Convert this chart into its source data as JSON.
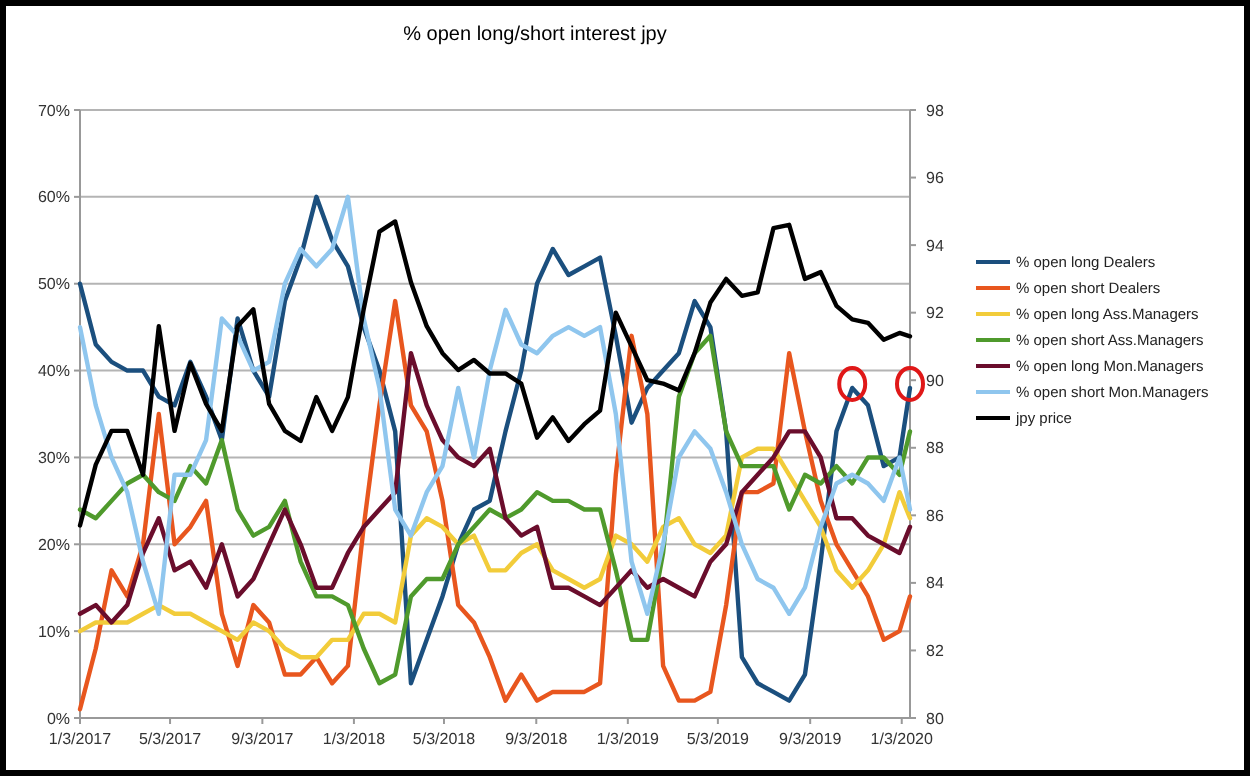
{
  "chart_data": {
    "type": "line",
    "title": "% open long/short interest jpy",
    "x": [
      "2017-01-03",
      "2017-01-24",
      "2017-02-14",
      "2017-03-07",
      "2017-03-28",
      "2017-04-18",
      "2017-05-09",
      "2017-05-30",
      "2017-06-20",
      "2017-07-11",
      "2017-08-01",
      "2017-08-22",
      "2017-09-12",
      "2017-10-03",
      "2017-10-24",
      "2017-11-14",
      "2017-12-05",
      "2017-12-26",
      "2018-01-16",
      "2018-02-06",
      "2018-02-27",
      "2018-03-20",
      "2018-04-10",
      "2018-05-01",
      "2018-05-22",
      "2018-06-12",
      "2018-07-03",
      "2018-07-24",
      "2018-08-14",
      "2018-09-04",
      "2018-09-25",
      "2018-10-16",
      "2018-11-06",
      "2018-11-27",
      "2018-12-18",
      "2019-01-08",
      "2019-01-29",
      "2019-02-19",
      "2019-03-12",
      "2019-04-02",
      "2019-04-23",
      "2019-05-14",
      "2019-06-04",
      "2019-06-25",
      "2019-07-16",
      "2019-08-06",
      "2019-08-27",
      "2019-09-17",
      "2019-10-08",
      "2019-10-29",
      "2019-11-19",
      "2019-12-10",
      "2019-12-31",
      "2020-01-14"
    ],
    "series": [
      {
        "name": "% open long Dealers",
        "color": "#1b4f7e",
        "values": [
          50,
          43,
          41,
          40,
          40,
          37,
          36,
          41,
          37,
          32,
          46,
          40,
          37,
          48,
          53,
          60,
          55,
          52,
          45,
          40,
          33,
          4,
          9,
          14,
          20,
          24,
          25,
          33,
          40,
          50,
          54,
          51,
          52,
          53,
          44,
          34,
          38,
          40,
          42,
          48,
          45,
          33,
          7,
          4,
          3,
          2,
          5,
          18,
          33,
          38,
          36,
          29,
          30,
          38
        ]
      },
      {
        "name": "% open short Dealers",
        "color": "#e8561e",
        "values": [
          1,
          8,
          17,
          14,
          20,
          35,
          20,
          22,
          25,
          12,
          6,
          13,
          11,
          5,
          5,
          7,
          4,
          6,
          22,
          36,
          48,
          36,
          33,
          25,
          13,
          11,
          7,
          2,
          5,
          2,
          3,
          3,
          3,
          4,
          28,
          44,
          35,
          6,
          2,
          2,
          3,
          13,
          26,
          26,
          27,
          42,
          33,
          25,
          20,
          17,
          14,
          9,
          10,
          14
        ]
      },
      {
        "name": "% open long Ass.Managers",
        "color": "#f2cc3a",
        "values": [
          10,
          11,
          11,
          11,
          12,
          13,
          12,
          12,
          11,
          10,
          9,
          11,
          10,
          8,
          7,
          7,
          9,
          9,
          12,
          12,
          11,
          21,
          23,
          22,
          20,
          21,
          17,
          17,
          19,
          20,
          17,
          16,
          15,
          16,
          21,
          20,
          18,
          22,
          23,
          20,
          19,
          21,
          30,
          31,
          31,
          28,
          25,
          22,
          17,
          15,
          17,
          20,
          26,
          23
        ]
      },
      {
        "name": "% open short Ass.Managers",
        "color": "#4f9a2c",
        "values": [
          24,
          23,
          25,
          27,
          28,
          26,
          25,
          29,
          27,
          32,
          24,
          21,
          22,
          25,
          18,
          14,
          14,
          13,
          8,
          4,
          5,
          14,
          16,
          16,
          20,
          22,
          24,
          23,
          24,
          26,
          25,
          25,
          24,
          24,
          17,
          9,
          9,
          19,
          37,
          42,
          44,
          33,
          29,
          29,
          29,
          24,
          28,
          27,
          29,
          27,
          30,
          30,
          28,
          33
        ]
      },
      {
        "name": "% open long Mon.Managers",
        "color": "#6a0d2c",
        "values": [
          12,
          13,
          11,
          13,
          19,
          23,
          17,
          18,
          15,
          20,
          14,
          16,
          20,
          24,
          20,
          15,
          15,
          19,
          22,
          24,
          26,
          42,
          36,
          32,
          30,
          29,
          31,
          23,
          21,
          22,
          15,
          15,
          14,
          13,
          15,
          17,
          15,
          16,
          15,
          14,
          18,
          20,
          26,
          28,
          30,
          33,
          33,
          30,
          23,
          23,
          21,
          20,
          19,
          22
        ]
      },
      {
        "name": "% open short Mon.Managers",
        "color": "#8fc6ee",
        "values": [
          45,
          36,
          30,
          26,
          18,
          12,
          28,
          28,
          32,
          46,
          44,
          40,
          41,
          50,
          54,
          52,
          54,
          60,
          46,
          38,
          24,
          21,
          26,
          29,
          38,
          30,
          40,
          47,
          43,
          42,
          44,
          45,
          44,
          45,
          35,
          18,
          12,
          20,
          30,
          33,
          31,
          26,
          20,
          16,
          15,
          12,
          15,
          22,
          27,
          28,
          27,
          25,
          30,
          24
        ]
      },
      {
        "name": "jpy price",
        "color": "#000000",
        "axis": "y2",
        "values": [
          85.7,
          87.5,
          88.5,
          88.5,
          87.2,
          91.6,
          88.5,
          90.5,
          89.3,
          88.5,
          91.6,
          92.1,
          89.3,
          88.5,
          88.2,
          89.5,
          88.5,
          89.5,
          92.1,
          94.4,
          94.7,
          92.9,
          91.6,
          90.8,
          90.3,
          90.6,
          90.2,
          90.2,
          89.9,
          88.3,
          88.9,
          88.2,
          88.7,
          89.1,
          92,
          91,
          90,
          89.9,
          89.7,
          90.8,
          92.3,
          93,
          92.5,
          92.6,
          94.5,
          94.6,
          93,
          93.2,
          92.2,
          91.8,
          91.7,
          91.2,
          91.4,
          91.3
        ]
      }
    ],
    "xlim": [
      "2017-01-03",
      "2020-01-14"
    ],
    "xticks": [
      {
        "value": "2017-01-03",
        "label": "1/3/2017"
      },
      {
        "value": "2017-05-03",
        "label": "5/3/2017"
      },
      {
        "value": "2017-09-03",
        "label": "9/3/2017"
      },
      {
        "value": "2018-01-03",
        "label": "1/3/2018"
      },
      {
        "value": "2018-05-03",
        "label": "5/3/2018"
      },
      {
        "value": "2018-09-03",
        "label": "9/3/2018"
      },
      {
        "value": "2019-01-03",
        "label": "1/3/2019"
      },
      {
        "value": "2019-05-03",
        "label": "5/3/2019"
      },
      {
        "value": "2019-09-03",
        "label": "9/3/2019"
      },
      {
        "value": "2020-01-03",
        "label": "1/3/2020"
      }
    ],
    "ylim": [
      0,
      70
    ],
    "yticks": [
      {
        "value": 0,
        "label": "0%"
      },
      {
        "value": 10,
        "label": "10%"
      },
      {
        "value": 20,
        "label": "20%"
      },
      {
        "value": 30,
        "label": "30%"
      },
      {
        "value": 40,
        "label": "40%"
      },
      {
        "value": 50,
        "label": "50%"
      },
      {
        "value": 60,
        "label": "60%"
      },
      {
        "value": 70,
        "label": "70%"
      }
    ],
    "y2lim": [
      80,
      98
    ],
    "y2ticks": [
      80,
      82,
      84,
      86,
      88,
      90,
      92,
      94,
      96,
      98
    ],
    "grid": "y",
    "legend": "right",
    "marker": "none",
    "line_style": "solid"
  }
}
